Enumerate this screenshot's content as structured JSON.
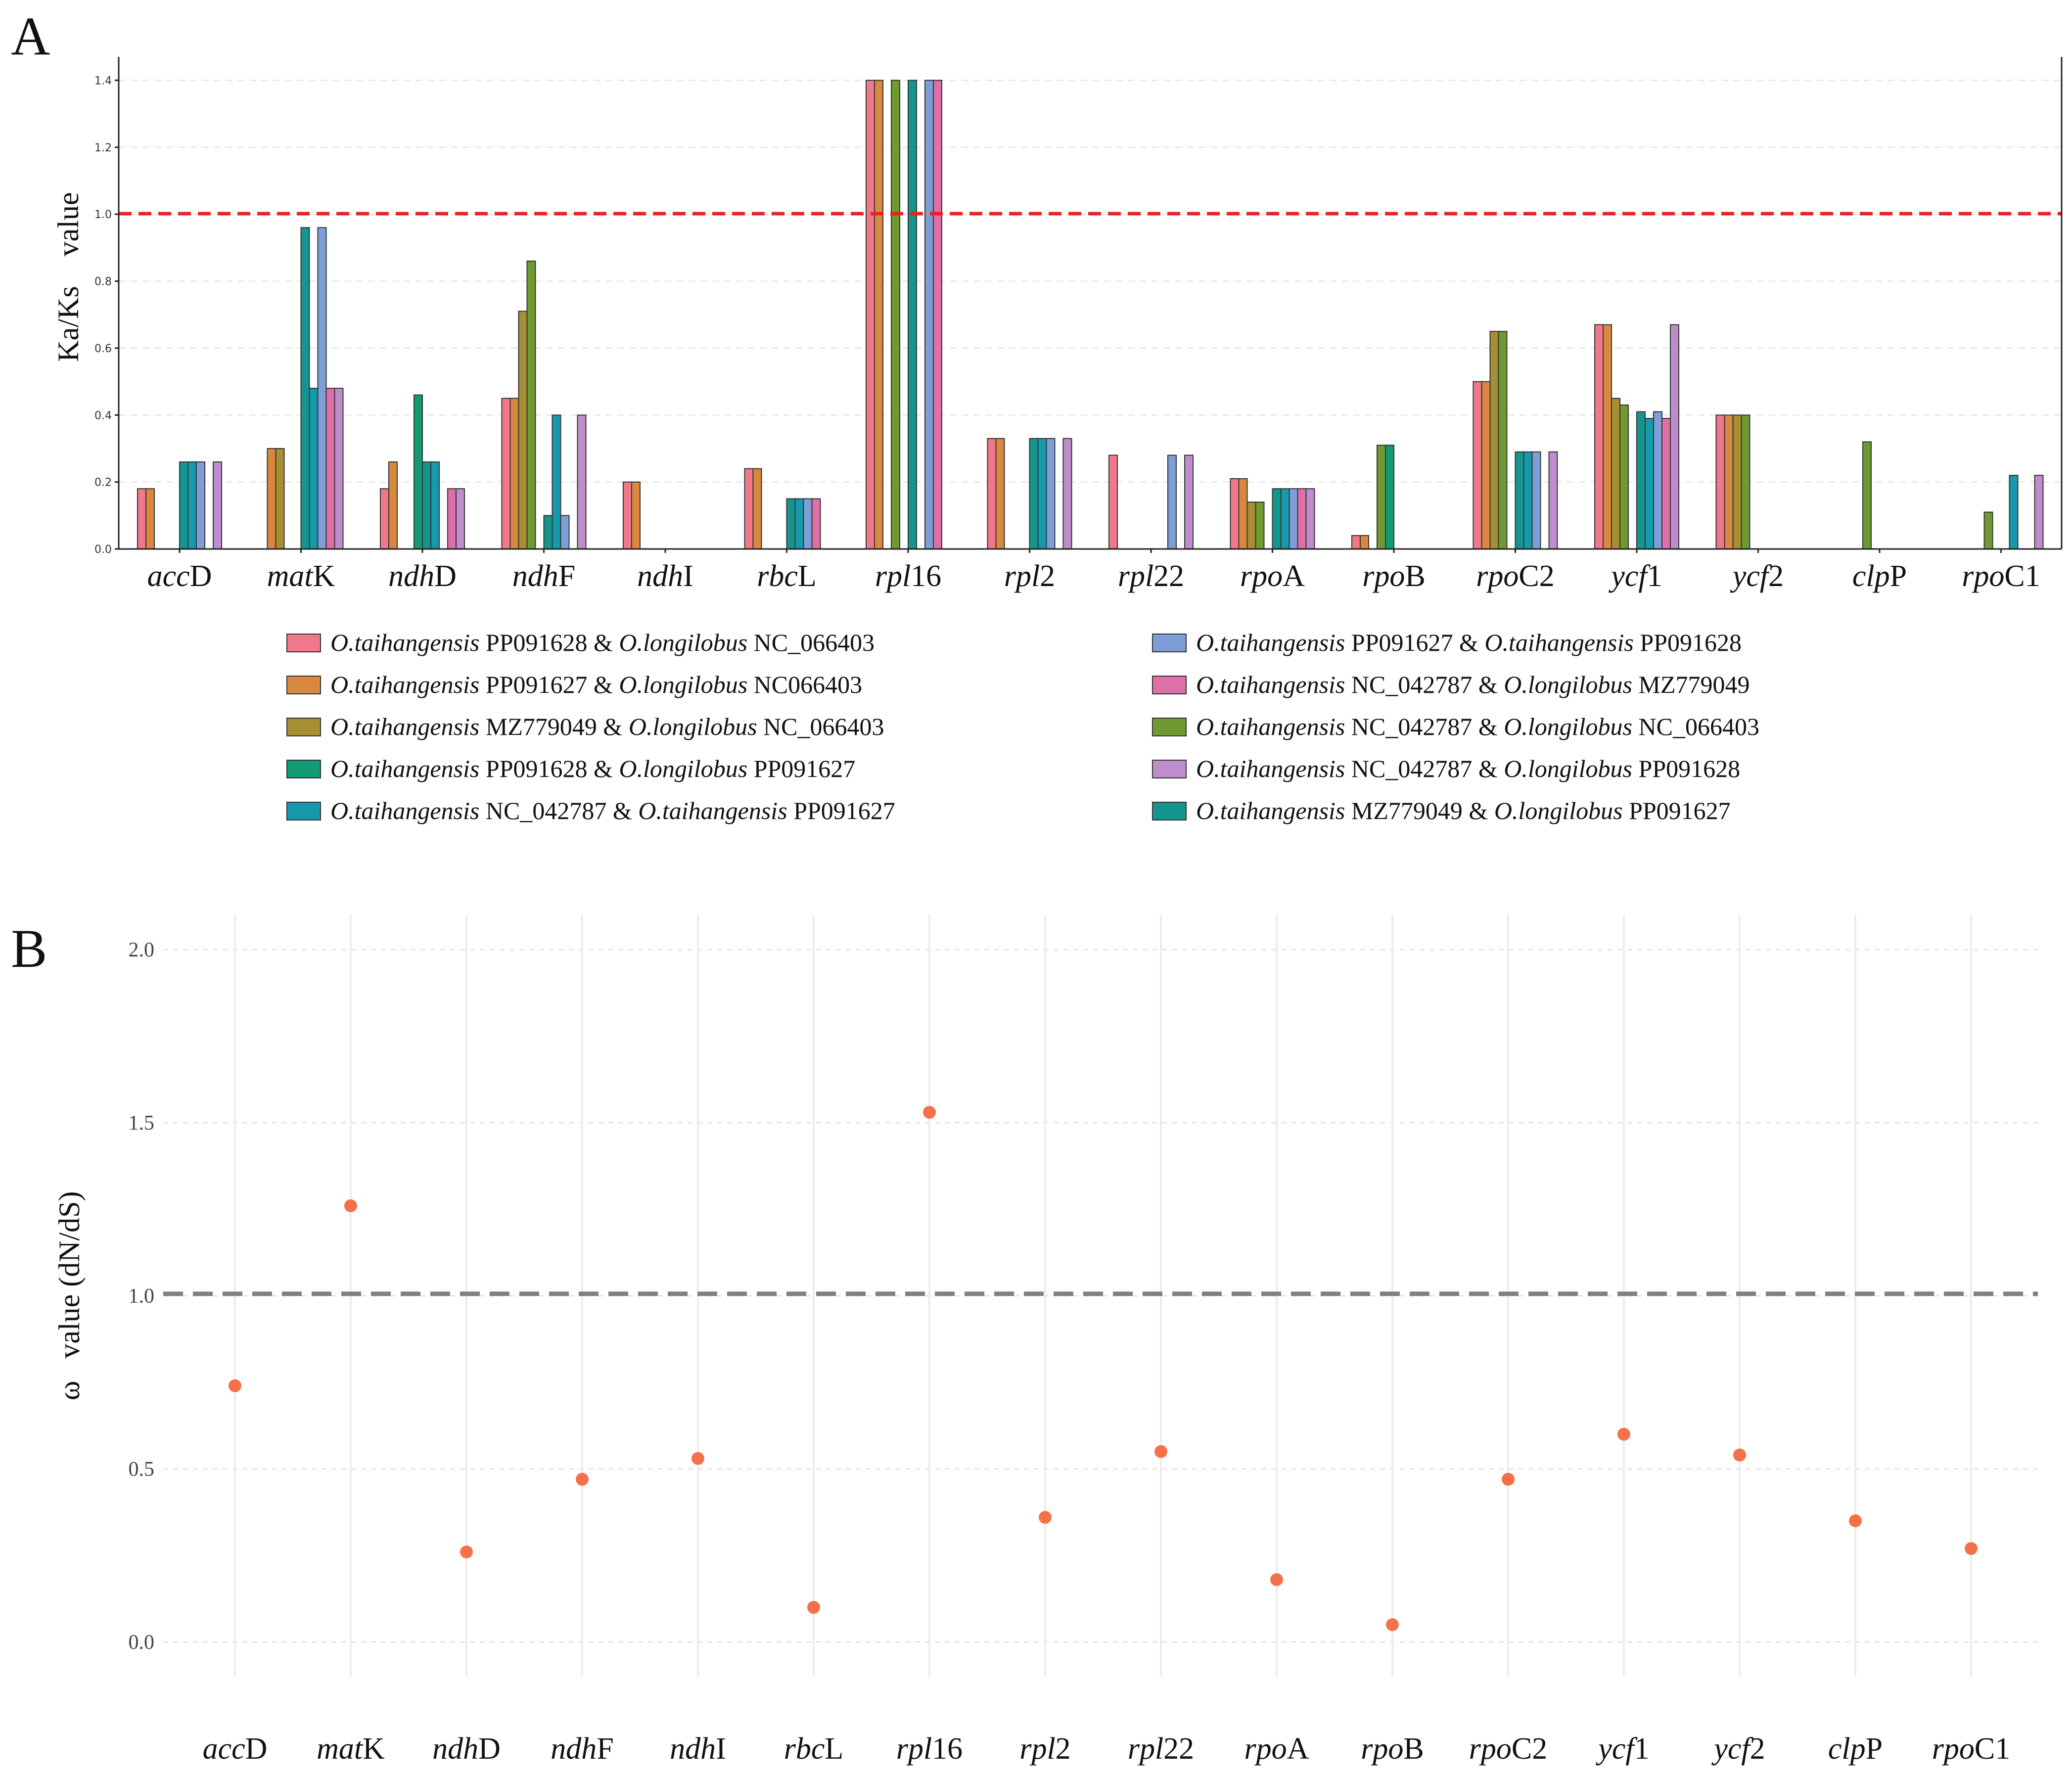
{
  "panels": {
    "a": "A",
    "b": "B"
  },
  "chart_data": [
    {
      "type": "bar",
      "panel": "A",
      "ylabel": "Ka/Ks    value",
      "ylim": [
        0,
        1.47
      ],
      "yticks": [
        "0.0",
        "0.2",
        "0.4",
        "0.6",
        "0.8",
        "1.0",
        "1.2",
        "1.4"
      ],
      "reference_line": {
        "value": 1.0,
        "color": "#e8231f",
        "style": "dashed"
      },
      "grid": "horizontal, dashed",
      "categories": [
        {
          "italic": "acc",
          "roman": "D"
        },
        {
          "italic": "mat",
          "roman": "K"
        },
        {
          "italic": "ndh",
          "roman": "D"
        },
        {
          "italic": "ndh",
          "roman": "F"
        },
        {
          "italic": "ndh",
          "roman": "I"
        },
        {
          "italic": "rbc",
          "roman": "L"
        },
        {
          "italic": "rpl",
          "roman": "16"
        },
        {
          "italic": "rpl",
          "roman": "2"
        },
        {
          "italic": "rpl",
          "roman": "22"
        },
        {
          "italic": "rpo",
          "roman": "A"
        },
        {
          "italic": "rpo",
          "roman": "B"
        },
        {
          "italic": "rpo",
          "roman": "C2"
        },
        {
          "italic": "ycf",
          "roman": "1"
        },
        {
          "italic": "ycf",
          "roman": "2"
        },
        {
          "italic": "clp",
          "roman": "P"
        },
        {
          "italic": "rpo",
          "roman": "C1"
        }
      ],
      "series": [
        {
          "color": "#f0788a",
          "label": {
            "sp1": "O.taihangensis",
            "acc1": "PP091628",
            "sp2": "O.longilobus",
            "acc2": "NC_066403"
          },
          "values": [
            0.18,
            0,
            0.18,
            0.45,
            0.2,
            0.24,
            1.4,
            0.33,
            0.28,
            0.21,
            0.04,
            0.5,
            0.67,
            0.4,
            0,
            0
          ]
        },
        {
          "color": "#d9893f",
          "label": {
            "sp1": "O.taihangensis",
            "acc1": "PP091627",
            "sp2": "O.longilobus",
            "acc2": "NC066403"
          },
          "values": [
            0.18,
            0.3,
            0.26,
            0.45,
            0.2,
            0.24,
            1.4,
            0.33,
            0,
            0.21,
            0.04,
            0.5,
            0.67,
            0.4,
            0,
            0
          ]
        },
        {
          "color": "#a68f35",
          "label": {
            "sp1": "O.taihangensis",
            "acc1": "MZ779049",
            "sp2": "O.longilobus",
            "acc2": "NC_066403"
          },
          "values": [
            0,
            0.3,
            0,
            0.71,
            0,
            0,
            0,
            0,
            0,
            0.14,
            0,
            0.65,
            0.45,
            0.4,
            0,
            0
          ]
        },
        {
          "color": "#6f9a32",
          "label": {
            "sp1": "O.taihangensis",
            "acc1": "NC_042787",
            "sp2": "O.longilobus",
            "acc2": "NC_066403"
          },
          "values": [
            0,
            0,
            0,
            0.86,
            0,
            0,
            1.4,
            0,
            0,
            0.14,
            0.31,
            0.65,
            0.43,
            0.4,
            0.32,
            0.11
          ]
        },
        {
          "color": "#129a73",
          "label": {
            "sp1": "O.taihangensis",
            "acc1": "PP091628",
            "sp2": "O.longilobus",
            "acc2": "PP091627"
          },
          "values": [
            0,
            0,
            0.46,
            0,
            0,
            0,
            0,
            0,
            0,
            0,
            0.31,
            0,
            0,
            0,
            0,
            0
          ]
        },
        {
          "color": "#14958f",
          "label": {
            "sp1": "O.taihangensis",
            "acc1": "MZ779049",
            "sp2": "O.longilobus",
            "acc2": "PP091627"
          },
          "values": [
            0.26,
            0.96,
            0.26,
            0.1,
            0,
            0.15,
            1.4,
            0.33,
            0,
            0.18,
            0,
            0.29,
            0.41,
            0,
            0,
            0
          ]
        },
        {
          "color": "#1599ab",
          "label": {
            "sp1": "O.taihangensis",
            "acc1": "NC_042787",
            "sp2": "O.taihangensis",
            "acc2": "PP091627"
          },
          "values": [
            0.26,
            0.48,
            0.26,
            0.4,
            0,
            0.15,
            0,
            0.33,
            0,
            0.18,
            0,
            0.29,
            0.39,
            0,
            0,
            0.22
          ]
        },
        {
          "color": "#7d9ed6",
          "label": {
            "sp1": "O.taihangensis",
            "acc1": "PP091627",
            "sp2": "O.taihangensis",
            "acc2": "PP091628"
          },
          "values": [
            0.26,
            0.96,
            0,
            0.1,
            0,
            0.15,
            1.4,
            0.33,
            0.28,
            0.18,
            0,
            0.29,
            0.41,
            0,
            0,
            0
          ]
        },
        {
          "color": "#de6fa8",
          "label": {
            "sp1": "O.taihangensis",
            "acc1": "NC_042787",
            "sp2": "O.longilobus",
            "acc2": "MZ779049"
          },
          "values": [
            0,
            0.48,
            0.18,
            0,
            0,
            0.15,
            1.4,
            0,
            0,
            0.18,
            0,
            0,
            0.39,
            0,
            0,
            0
          ]
        },
        {
          "color": "#c08dcc",
          "label": {
            "sp1": "O.taihangensis",
            "acc1": "NC_042787",
            "sp2": "O.longilobus",
            "acc2": "PP091628"
          },
          "values": [
            0.26,
            0.48,
            0.18,
            0.4,
            0,
            0,
            0,
            0.33,
            0.28,
            0.18,
            0,
            0.29,
            0.67,
            0,
            0,
            0.22
          ]
        }
      ],
      "legend_order": [
        0,
        1,
        2,
        4,
        6,
        7,
        8,
        3,
        9,
        5
      ]
    },
    {
      "type": "scatter",
      "panel": "B",
      "ylabel": "ω   value (dN/dS)",
      "ylim": [
        -0.1,
        2.1
      ],
      "yticks": [
        "0.0",
        "0.5",
        "1.0",
        "1.5",
        "2.0"
      ],
      "reference_line": {
        "value": 1.0,
        "color": "#808080",
        "style": "dashed"
      },
      "point_color": "#f4714a",
      "values": [
        0.74,
        1.26,
        0.26,
        0.47,
        0.53,
        0.1,
        1.53,
        0.36,
        0.55,
        0.18,
        0.05,
        0.47,
        0.6,
        0.54,
        0.35,
        0.27
      ]
    }
  ]
}
